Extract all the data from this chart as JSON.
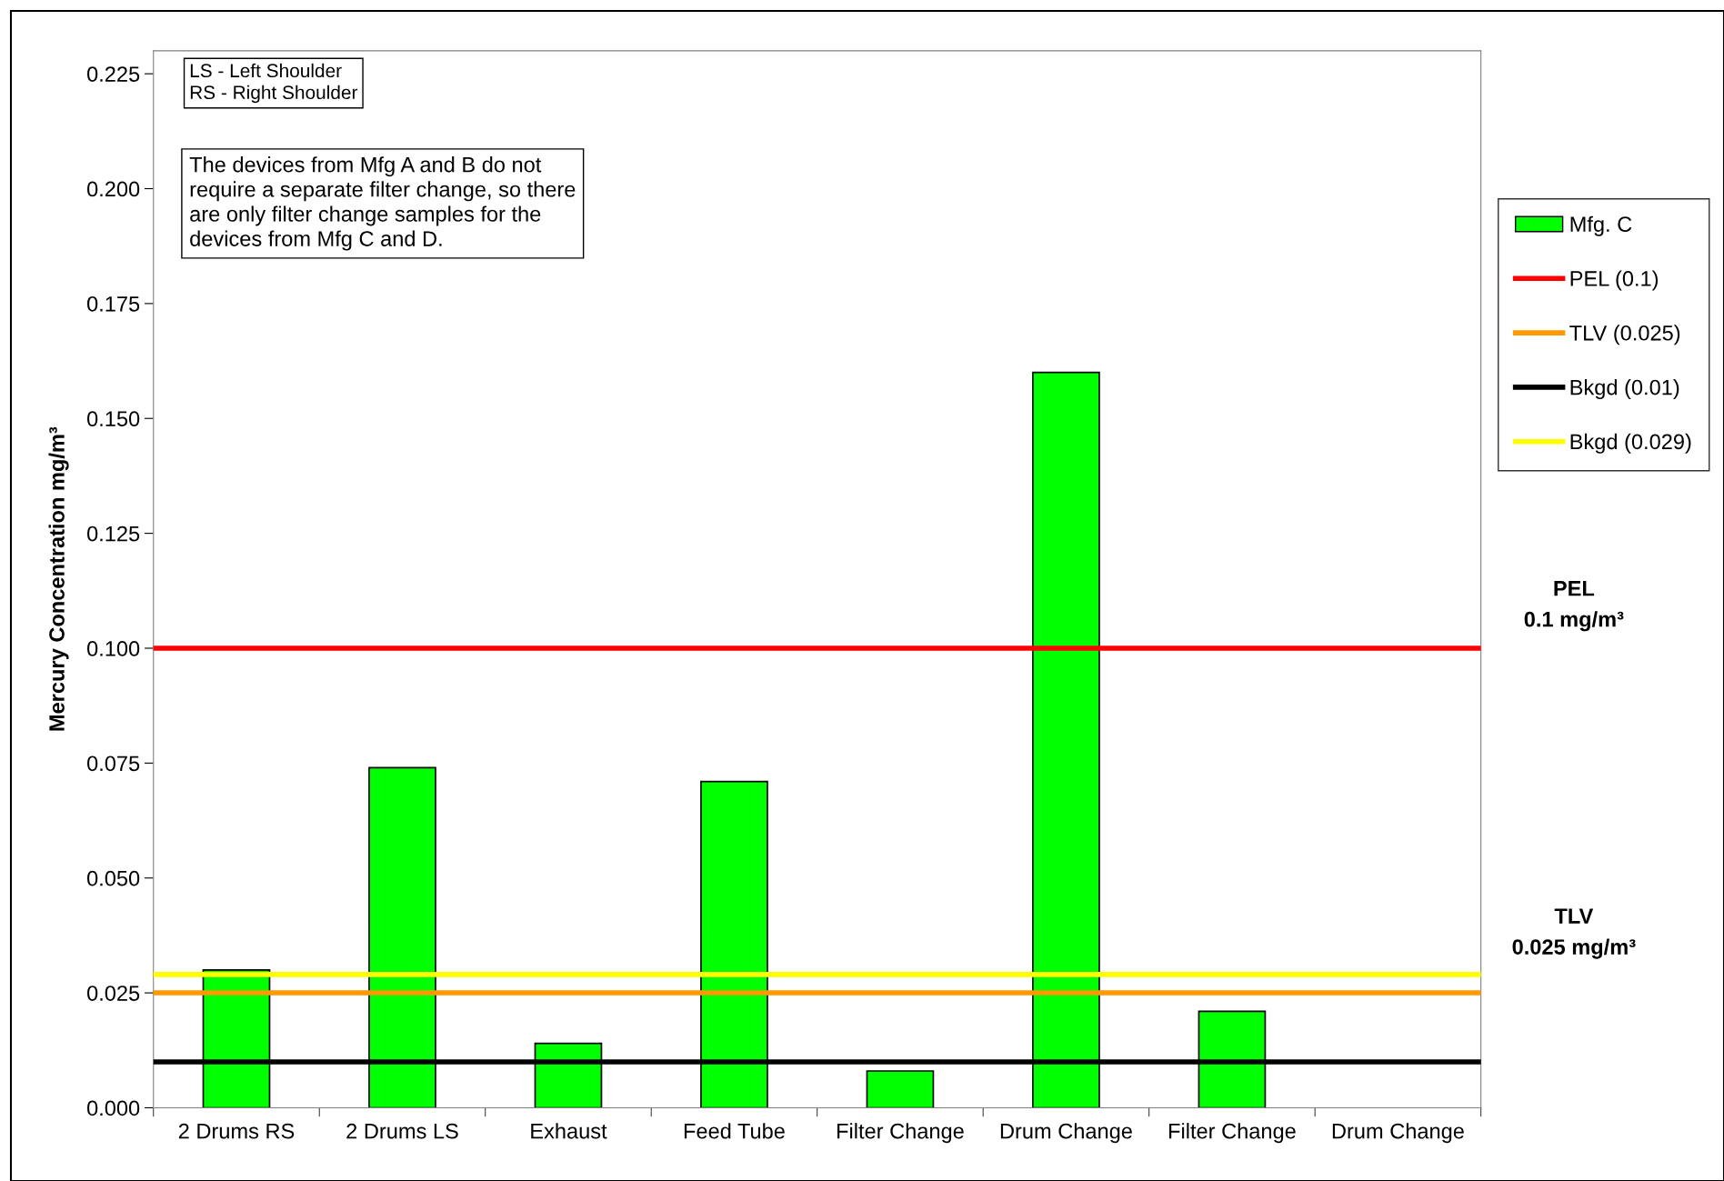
{
  "chart_data": {
    "type": "bar",
    "ylabel": "Mercury Concentration mg/m³",
    "categories": [
      "2 Drums RS",
      "2 Drums LS",
      "Exhaust",
      "Feed Tube",
      "Filter Change",
      "Drum Change",
      "Filter Change",
      "Drum Change"
    ],
    "series": [
      {
        "name": "Mfg. C",
        "color": "#00ff00",
        "values": [
          0.03,
          0.074,
          0.014,
          0.071,
          0.008,
          0.16,
          0.021,
          null
        ]
      }
    ],
    "ylim": [
      0,
      0.23
    ],
    "yticks": [
      {
        "value": 0,
        "label": "0.000"
      },
      {
        "value": 0.025,
        "label": "0.025"
      },
      {
        "value": 0.05,
        "label": "0.050"
      },
      {
        "value": 0.075,
        "label": "0.075"
      },
      {
        "value": 0.1,
        "label": "0.100"
      },
      {
        "value": 0.125,
        "label": "0.125"
      },
      {
        "value": 0.15,
        "label": "0.150"
      },
      {
        "value": 0.175,
        "label": "0.175"
      },
      {
        "value": 0.2,
        "label": "0.200"
      },
      {
        "value": 0.225,
        "label": "0.225"
      }
    ],
    "ref_lines": [
      {
        "axis": "y",
        "value": 0.1,
        "label": "PEL (0.1)",
        "color": "#ff0000"
      },
      {
        "axis": "y",
        "value": 0.025,
        "label": "TLV (0.025)",
        "color": "#ff9900"
      },
      {
        "axis": "y",
        "value": 0.01,
        "label": "Bkgd (0.01)",
        "color": "#000000"
      },
      {
        "axis": "y",
        "value": 0.029,
        "label": "Bkgd (0.029)",
        "color": "#ffff00"
      }
    ],
    "annotations": [
      "LS - Left Shoulder\nRS - Right Shoulder",
      "The devices from Mfg A and B do not\nrequire a separate filter change, so there\nare only filter change samples for the\ndevices from Mfg C and D.",
      "PEL\n0.1 mg/m³",
      "TLV\n0.025 mg/m³"
    ],
    "grid": false,
    "legend": "right"
  }
}
